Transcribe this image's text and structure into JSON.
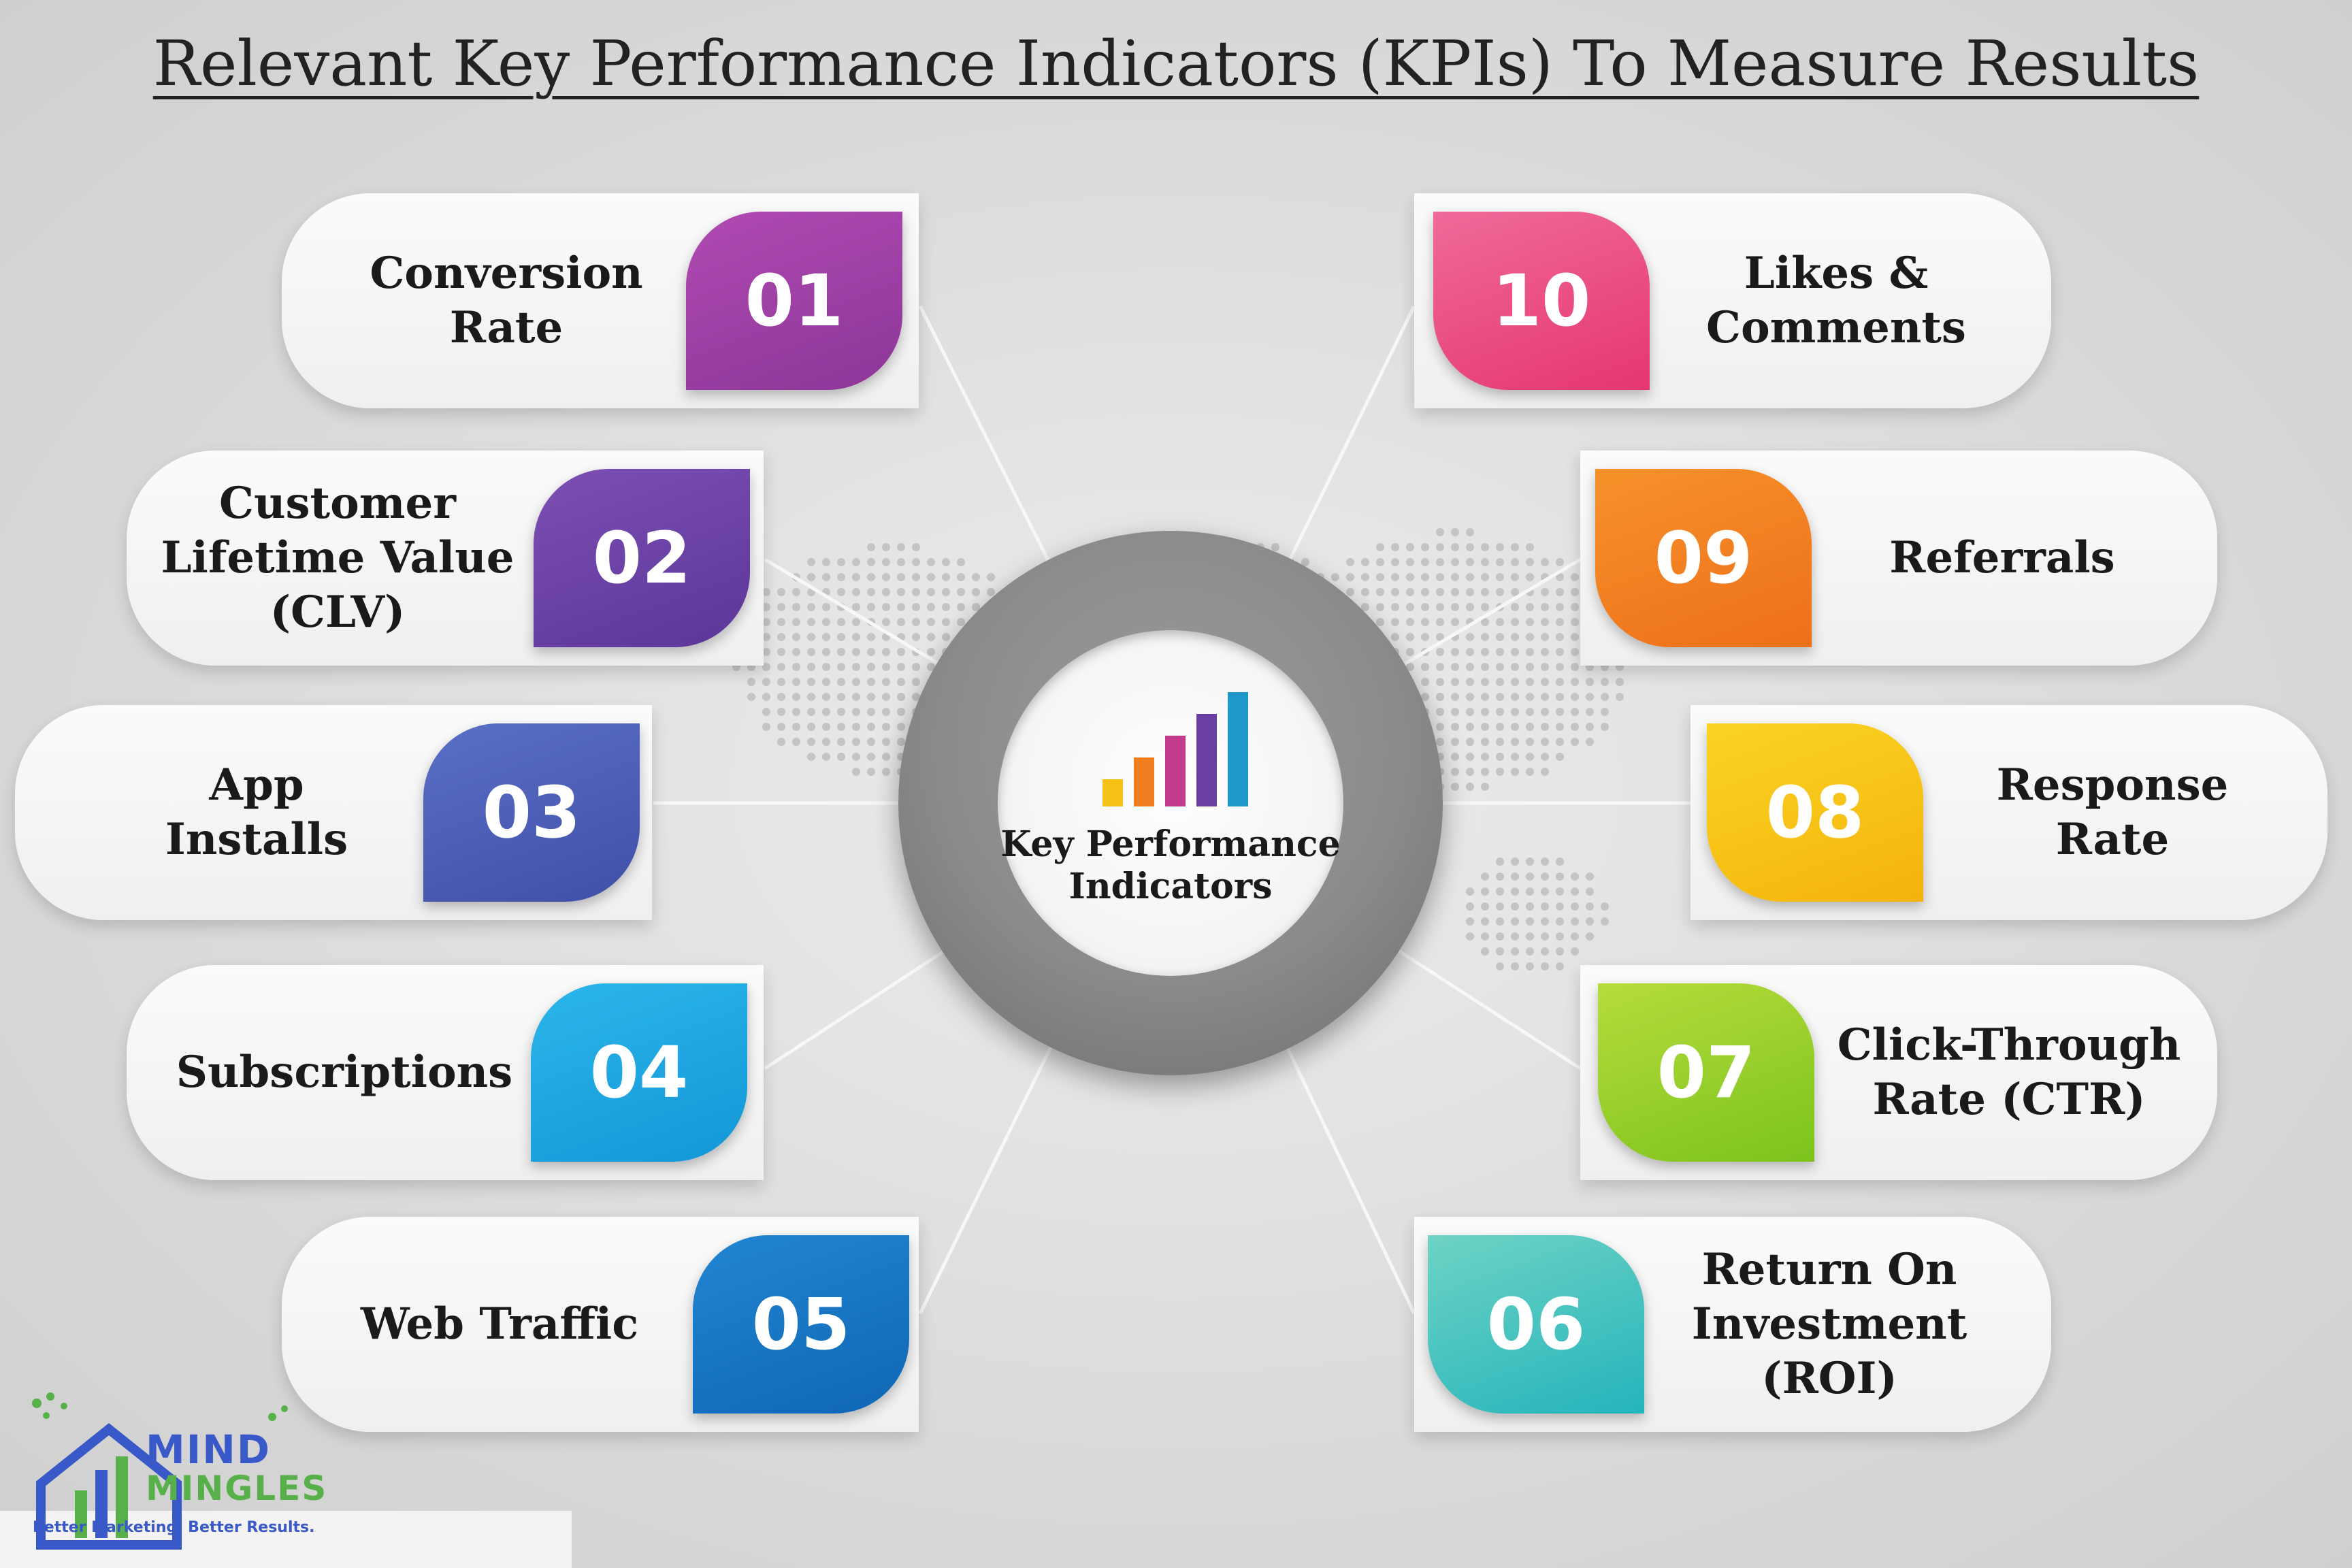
{
  "title": "Relevant Key Performance Indicators (KPIs) To Measure Results",
  "hub": {
    "label": "Key Performance\nIndicators",
    "icon": "bar-chart-icon",
    "bar_colors": [
      "#f5c116",
      "#f07f22",
      "#c23b8c",
      "#6a3fa3",
      "#1f97c9"
    ]
  },
  "kpis": [
    {
      "number": "01",
      "label": "Conversion\nRate",
      "color_top": "#b04ab2",
      "color_bottom": "#8c3698"
    },
    {
      "number": "02",
      "label": "Customer\nLifetime Value\n(CLV)",
      "color_top": "#7d4fb4",
      "color_bottom": "#5b3698"
    },
    {
      "number": "03",
      "label": "App\nInstalls",
      "color_top": "#5b6fc6",
      "color_bottom": "#3f4fa8"
    },
    {
      "number": "04",
      "label": "Subscriptions",
      "color_top": "#2cb6ea",
      "color_bottom": "#1396d6"
    },
    {
      "number": "05",
      "label": "Web Traffic",
      "color_top": "#2286d2",
      "color_bottom": "#0f66b4"
    },
    {
      "number": "06",
      "label": "Return On\nInvestment\n(ROI)",
      "color_top": "#6ed3c4",
      "color_bottom": "#25b4bc"
    },
    {
      "number": "07",
      "label": "Click-Through\nRate (CTR)",
      "color_top": "#b6dc3c",
      "color_bottom": "#7cc31e"
    },
    {
      "number": "08",
      "label": "Response\nRate",
      "color_top": "#fbd424",
      "color_bottom": "#f4b30c"
    },
    {
      "number": "09",
      "label": "Referrals",
      "color_top": "#f6922a",
      "color_bottom": "#ee6f1a"
    },
    {
      "number": "10",
      "label": "Likes &\nComments",
      "color_top": "#f06a9a",
      "color_bottom": "#e53670"
    }
  ],
  "logo": {
    "icon": "house-growth-icon",
    "word1": "MIND",
    "word2": "MINGLES",
    "tagline": "Better Marketing. Better Results.",
    "color_primary": "#3a59c8",
    "color_secondary": "#58b04a"
  }
}
